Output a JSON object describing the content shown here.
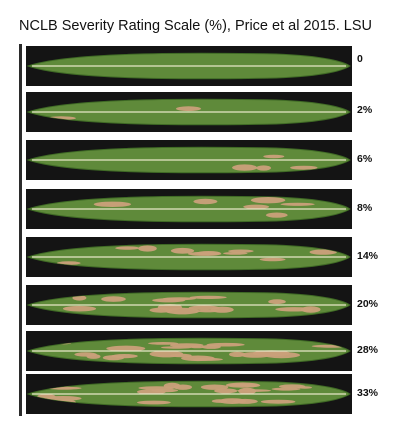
{
  "title": "NCLB Severity Rating Scale (%), Price et al 2015. LSU",
  "ratings": [
    {
      "label": "0",
      "severity": 0
    },
    {
      "label": "2%",
      "severity": 2
    },
    {
      "label": "6%",
      "severity": 6
    },
    {
      "label": "8%",
      "severity": 8
    },
    {
      "label": "14%",
      "severity": 14
    },
    {
      "label": "20%",
      "severity": 20
    },
    {
      "label": "28%",
      "severity": 28
    },
    {
      "label": "33%",
      "severity": 33
    }
  ],
  "colors": {
    "background": "#141414",
    "leaf": "#5f8a3a",
    "leaf_dark": "#3f6a25",
    "lesion": "#caa07a",
    "midrib": "#e6e8c8"
  }
}
